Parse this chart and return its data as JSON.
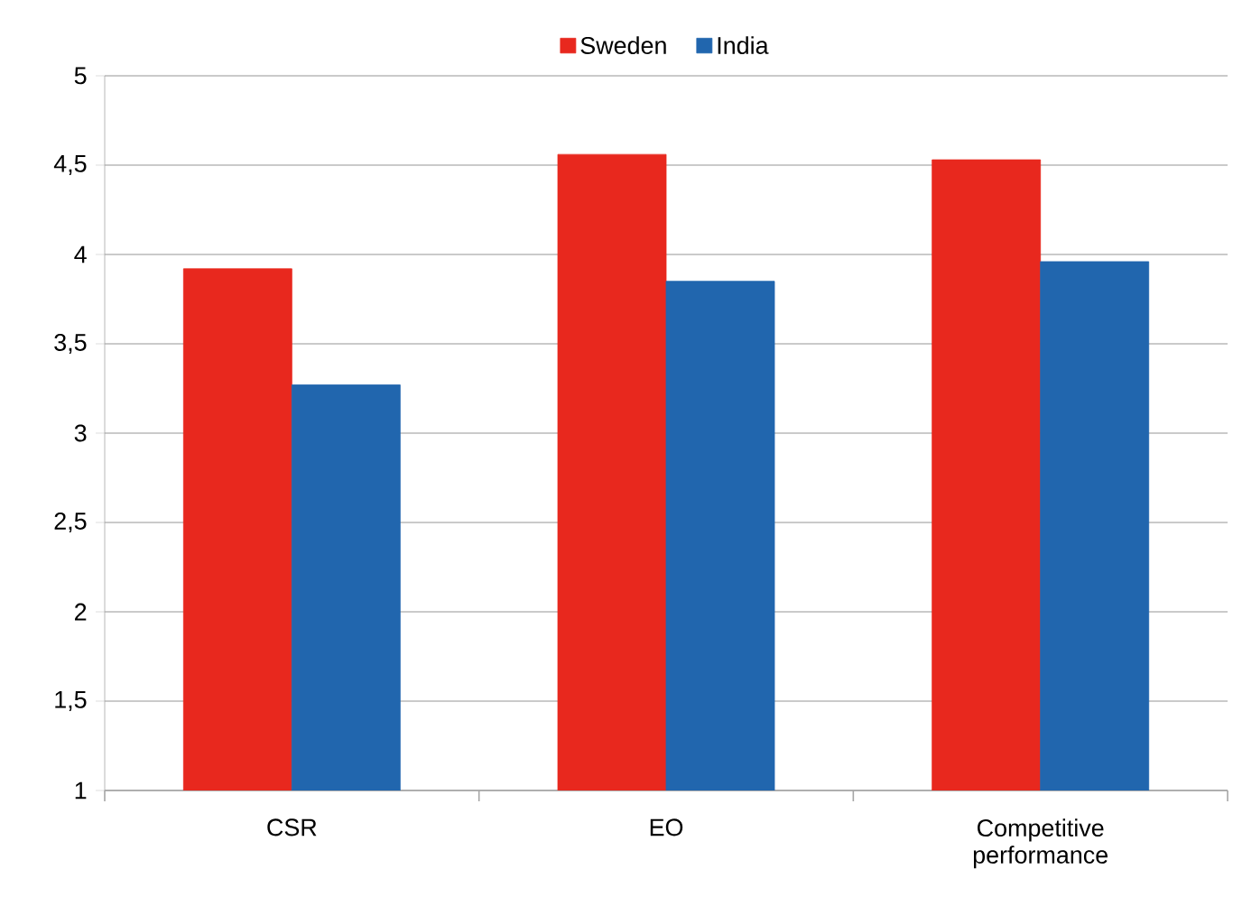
{
  "chart_data": {
    "type": "bar",
    "categories": [
      "CSR",
      "EO",
      "Competitive performance"
    ],
    "series": [
      {
        "name": "Sweden",
        "color": "#e8281e",
        "values": [
          3.92,
          4.56,
          4.53
        ]
      },
      {
        "name": "India",
        "color": "#2166ae",
        "values": [
          3.27,
          3.85,
          3.96
        ]
      }
    ],
    "ylim": [
      1,
      5
    ],
    "yticks": [
      1,
      {
        "value": 1.5,
        "label": "1,5"
      },
      2,
      {
        "value": 2.5,
        "label": "2,5"
      },
      3,
      {
        "value": 3.5,
        "label": "3,5"
      },
      4,
      {
        "value": 4.5,
        "label": "4,5"
      },
      5
    ],
    "grid": "y",
    "legend": "top"
  }
}
